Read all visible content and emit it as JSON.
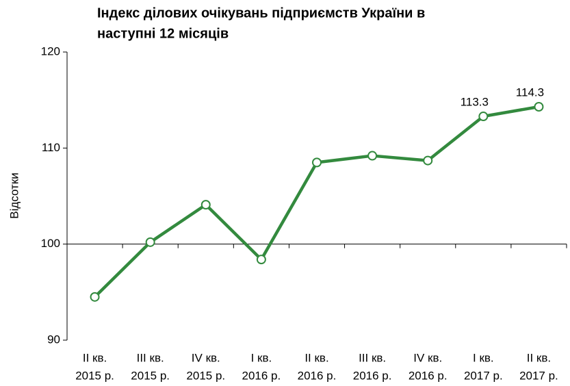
{
  "chart_data": {
    "type": "line",
    "title": [
      "Індекс ділових очікувань підприємств України в",
      "наступні 12 місяців"
    ],
    "y_label": "Відсотки",
    "categories": [
      [
        "II кв.",
        "2015 р."
      ],
      [
        "III кв.",
        "2015 р."
      ],
      [
        "IV кв.",
        "2015 р."
      ],
      [
        "I кв.",
        "2016 р."
      ],
      [
        "II кв.",
        "2016 р."
      ],
      [
        "III кв.",
        "2016 р."
      ],
      [
        "IV кв.",
        "2016 р."
      ],
      [
        "I кв.",
        "2017 р."
      ],
      [
        "II кв.",
        "2017 р."
      ]
    ],
    "values": [
      94.5,
      100.2,
      104.1,
      98.4,
      108.5,
      109.2,
      108.7,
      113.3,
      114.3
    ],
    "value_labels": [
      null,
      null,
      null,
      null,
      null,
      null,
      null,
      "113.3",
      "114.3"
    ],
    "color": "#338a3e",
    "ylim": [
      90,
      120
    ],
    "yticks": [
      90,
      100,
      110,
      120
    ],
    "x_axis_crosses": 100
  }
}
